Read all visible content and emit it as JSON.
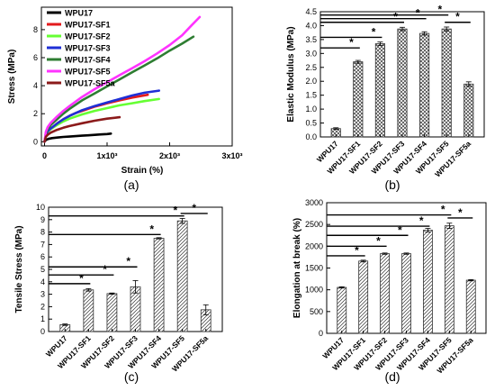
{
  "chart_data": [
    {
      "type": "line",
      "panel_label": "(a)",
      "xlabel": "Strain (%)",
      "ylabel": "Stress (MPa)",
      "xlim": [
        -50,
        3000
      ],
      "ylim": [
        -0.3,
        9.6
      ],
      "xticks": [
        0,
        1000,
        2000,
        3000
      ],
      "xtick_labels": [
        "0",
        "1x10³",
        "2x10³",
        "3x10³"
      ],
      "yticks": [
        0,
        2,
        4,
        6,
        8
      ],
      "ytick_labels": [
        "0",
        "2",
        "4",
        "6",
        "8"
      ],
      "legend_position": "top-left",
      "series": [
        {
          "name": "WPU17",
          "color": "#000000",
          "x": [
            0,
            20,
            60,
            120,
            200,
            300,
            400,
            500,
            600,
            700,
            800,
            900,
            1000,
            1060
          ],
          "y": [
            0,
            0.12,
            0.2,
            0.26,
            0.3,
            0.34,
            0.37,
            0.4,
            0.43,
            0.46,
            0.49,
            0.52,
            0.55,
            0.58
          ]
        },
        {
          "name": "WPU17-SF1",
          "color": "#e31a1c",
          "x": [
            0,
            20,
            50,
            100,
            200,
            300,
            400,
            500,
            600,
            700,
            800,
            900,
            1000,
            1200,
            1400,
            1650
          ],
          "y": [
            0,
            0.5,
            0.75,
            0.95,
            1.3,
            1.6,
            1.85,
            2.05,
            2.2,
            2.35,
            2.5,
            2.62,
            2.75,
            2.95,
            3.15,
            3.35
          ]
        },
        {
          "name": "WPU17-SF2",
          "color": "#66ff33",
          "x": [
            0,
            20,
            50,
            100,
            200,
            300,
            400,
            600,
            800,
            1000,
            1200,
            1400,
            1600,
            1830
          ],
          "y": [
            0,
            0.45,
            0.7,
            0.9,
            1.2,
            1.45,
            1.65,
            1.95,
            2.2,
            2.4,
            2.6,
            2.75,
            2.9,
            3.05
          ]
        },
        {
          "name": "WPU17-SF3",
          "color": "#1f2fd6",
          "x": [
            0,
            20,
            50,
            100,
            200,
            300,
            400,
            600,
            800,
            1000,
            1200,
            1400,
            1600,
            1830
          ],
          "y": [
            0,
            0.5,
            0.75,
            0.95,
            1.3,
            1.6,
            1.85,
            2.25,
            2.55,
            2.8,
            3.05,
            3.3,
            3.5,
            3.65
          ]
        },
        {
          "name": "WPU17-SF4",
          "color": "#2e7d32",
          "x": [
            0,
            20,
            50,
            100,
            200,
            300,
            400,
            600,
            800,
            1000,
            1200,
            1400,
            1600,
            1800,
            2000,
            2200,
            2380
          ],
          "y": [
            0,
            0.6,
            0.9,
            1.2,
            1.6,
            2.0,
            2.35,
            2.95,
            3.45,
            3.95,
            4.45,
            4.95,
            5.45,
            5.95,
            6.5,
            7.0,
            7.5
          ]
        },
        {
          "name": "WPU17-SF5",
          "color": "#ff33ff",
          "x": [
            0,
            20,
            50,
            100,
            200,
            300,
            400,
            600,
            800,
            1000,
            1200,
            1400,
            1600,
            1800,
            2000,
            2200,
            2350,
            2480
          ],
          "y": [
            0,
            0.7,
            1.05,
            1.35,
            1.8,
            2.2,
            2.55,
            3.2,
            3.75,
            4.25,
            4.75,
            5.25,
            5.75,
            6.3,
            6.9,
            7.6,
            8.3,
            8.9
          ]
        },
        {
          "name": "WPU17-SF5a",
          "color": "#8b1a1a",
          "x": [
            0,
            20,
            50,
            100,
            200,
            300,
            400,
            600,
            800,
            1000,
            1200
          ],
          "y": [
            0,
            0.35,
            0.5,
            0.65,
            0.85,
            1.0,
            1.12,
            1.32,
            1.5,
            1.65,
            1.75
          ]
        }
      ]
    },
    {
      "type": "bar",
      "panel_label": "(b)",
      "ylabel": "Elastic Modulus (MPa)",
      "ylim": [
        0,
        4.5
      ],
      "yticks": [
        0,
        0.5,
        1,
        1.5,
        2,
        2.5,
        3,
        3.5,
        4,
        4.5
      ],
      "ytick_labels": [
        "0.0",
        "0.5",
        "1.0",
        "1.5",
        "2.0",
        "2.5",
        "3.0",
        "3.5",
        "4.0",
        "4.5"
      ],
      "categories": [
        "WPU17",
        "WPU17-SF1",
        "WPU17-SF2",
        "WPU17-SF3",
        "WPU17-SF4",
        "WPU17-SF5",
        "WPU17-SF5a"
      ],
      "values": [
        0.3,
        2.7,
        3.35,
        3.88,
        3.72,
        3.88,
        1.9
      ],
      "errors": [
        0.03,
        0.05,
        0.06,
        0.06,
        0.06,
        0.07,
        0.08
      ],
      "pattern": "crosshatch",
      "significance": [
        {
          "from": 0,
          "to": 1,
          "y": 3.2,
          "label": "*"
        },
        {
          "from": 0,
          "to": 2,
          "y": 3.58,
          "label": "*"
        },
        {
          "from": 0,
          "to": 3,
          "y": 4.12,
          "label": "*"
        },
        {
          "from": 0,
          "to": 4,
          "y": 4.25,
          "label": "*"
        },
        {
          "from": 0,
          "to": 5,
          "y": 4.38,
          "label": "*"
        },
        {
          "from": 5,
          "to": 6,
          "y": 4.12,
          "label": "*"
        }
      ]
    },
    {
      "type": "bar",
      "panel_label": "(c)",
      "ylabel": "Tensile Stress (MPa)",
      "ylim": [
        0,
        10
      ],
      "yticks": [
        0,
        1,
        2,
        3,
        4,
        5,
        6,
        7,
        8,
        9,
        10
      ],
      "ytick_labels": [
        "0",
        "1",
        "2",
        "3",
        "4",
        "5",
        "6",
        "7",
        "8",
        "9",
        "10"
      ],
      "categories": [
        "WPU17",
        "WPU17-SF1",
        "WPU17-SF2",
        "WPU17-SF3",
        "WPU17-SF4",
        "WPU17-SF5",
        "WPU17-SF5a"
      ],
      "values": [
        0.55,
        3.35,
        3.05,
        3.6,
        7.5,
        8.9,
        1.75
      ],
      "errors": [
        0.06,
        0.1,
        0.05,
        0.5,
        0.05,
        0.2,
        0.4
      ],
      "pattern": "hatch",
      "significance": [
        {
          "from": 0,
          "to": 1,
          "y": 3.85,
          "label": "*"
        },
        {
          "from": 0,
          "to": 2,
          "y": 4.55,
          "label": "*"
        },
        {
          "from": 0,
          "to": 3,
          "y": 5.2,
          "label": "*"
        },
        {
          "from": 0,
          "to": 4,
          "y": 7.8,
          "label": "*"
        },
        {
          "from": 0,
          "to": 5,
          "y": 9.3,
          "label": "*"
        },
        {
          "from": 5,
          "to": 6,
          "y": 9.5,
          "label": "*"
        }
      ]
    },
    {
      "type": "bar",
      "panel_label": "(d)",
      "ylabel": "Elongation at break (%)",
      "ylim": [
        0,
        3000
      ],
      "yticks": [
        0,
        500,
        1000,
        1500,
        2000,
        2500,
        3000
      ],
      "ytick_labels": [
        "0",
        "500",
        "1000",
        "1500",
        "2000",
        "2500",
        "3000"
      ],
      "categories": [
        "WPU17",
        "WPU17-SF1",
        "WPU17-SF2",
        "WPU17-SF3",
        "WPU17-SF4",
        "WPU17-SF5",
        "WPU17-SF5a"
      ],
      "values": [
        1055,
        1660,
        1830,
        1830,
        2370,
        2470,
        1220
      ],
      "errors": [
        15,
        20,
        15,
        15,
        40,
        60,
        15
      ],
      "pattern": "hatch",
      "significance": [
        {
          "from": 0,
          "to": 1,
          "y": 1780,
          "label": "*"
        },
        {
          "from": 0,
          "to": 2,
          "y": 2000,
          "label": "*"
        },
        {
          "from": 0,
          "to": 3,
          "y": 2250,
          "label": "*"
        },
        {
          "from": 0,
          "to": 4,
          "y": 2460,
          "label": "*"
        },
        {
          "from": 0,
          "to": 5,
          "y": 2720,
          "label": "*"
        },
        {
          "from": 5,
          "to": 6,
          "y": 2650,
          "label": "*"
        }
      ]
    }
  ]
}
